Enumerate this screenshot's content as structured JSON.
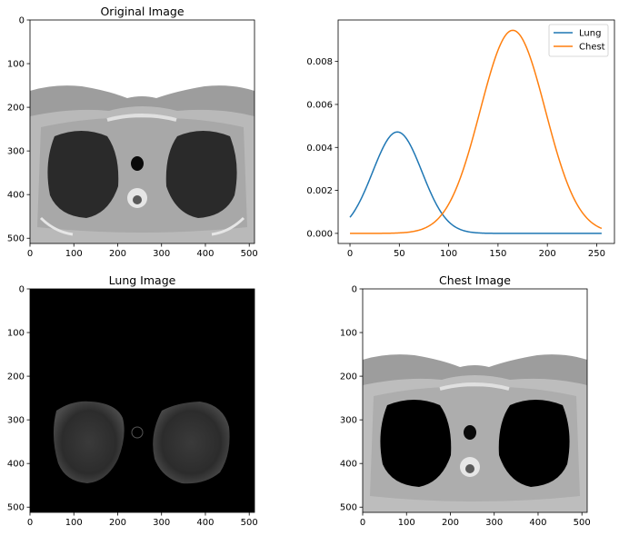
{
  "chart_data": [
    {
      "type": "image",
      "title": "Original Image",
      "xlim": [
        0,
        512
      ],
      "ylim": [
        512,
        0
      ],
      "xticks": [
        0,
        100,
        200,
        300,
        400,
        500
      ],
      "yticks": [
        0,
        100,
        200,
        300,
        400,
        500
      ]
    },
    {
      "type": "line",
      "title": "",
      "xlim": [
        -12,
        268
      ],
      "ylim": [
        -0.00047,
        0.00993
      ],
      "xticks": [
        0,
        50,
        100,
        150,
        200,
        250
      ],
      "yticks": [
        0.0,
        0.002,
        0.004,
        0.006,
        0.008
      ],
      "ytick_labels": [
        "0.000",
        "0.002",
        "0.004",
        "0.006",
        "0.008"
      ],
      "legend": "top-right",
      "series": [
        {
          "name": "Lung",
          "color": "#1f77b4",
          "distribution": "gaussian",
          "mean": 48,
          "std": 25,
          "peak": 0.00472
        },
        {
          "name": "Chest",
          "color": "#ff7f0e",
          "distribution": "gaussian",
          "mean": 165,
          "std": 33,
          "peak": 0.00945
        }
      ]
    },
    {
      "type": "image",
      "title": "Lung Image",
      "xlim": [
        0,
        512
      ],
      "ylim": [
        512,
        0
      ],
      "xticks": [
        0,
        100,
        200,
        300,
        400,
        500
      ],
      "yticks": [
        0,
        100,
        200,
        300,
        400,
        500
      ]
    },
    {
      "type": "image",
      "title": "Chest Image",
      "xlim": [
        0,
        512
      ],
      "ylim": [
        512,
        0
      ],
      "xticks": [
        0,
        100,
        200,
        300,
        400,
        500
      ],
      "yticks": [
        0,
        100,
        200,
        300,
        400,
        500
      ]
    }
  ]
}
